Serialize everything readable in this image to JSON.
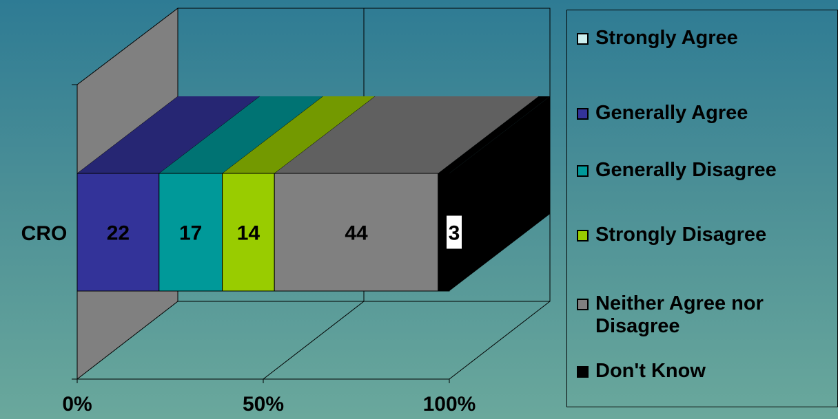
{
  "chart_data": {
    "type": "bar",
    "orientation": "horizontal",
    "stacked": "100%",
    "three_d": true,
    "categories": [
      "CRO"
    ],
    "series": [
      {
        "name": "Strongly Agree",
        "values": [
          0
        ],
        "color": "#cceeee",
        "top_color": "#cceeee",
        "side_color": "#cceeee",
        "label": ""
      },
      {
        "name": "Generally Agree",
        "values": [
          22
        ],
        "color": "#333399",
        "top_color": "#262673",
        "side_color": "#262673",
        "label": "22"
      },
      {
        "name": "Generally Disagree",
        "values": [
          17
        ],
        "color": "#009999",
        "top_color": "#007373",
        "side_color": "#007373",
        "label": "17"
      },
      {
        "name": "Strongly Disagree",
        "values": [
          14
        ],
        "color": "#99cc00",
        "top_color": "#739900",
        "side_color": "#739900",
        "label": "14"
      },
      {
        "name": "Neither Agree nor Disagree",
        "values": [
          44
        ],
        "color": "#808080",
        "top_color": "#606060",
        "side_color": "#606060",
        "label": "44"
      },
      {
        "name": "Don't Know",
        "values": [
          3
        ],
        "color": "#000000",
        "top_color": "#000000",
        "side_color": "#000000",
        "label": "3"
      }
    ],
    "x_ticks": [
      "0%",
      "50%",
      "100%"
    ],
    "xlim": [
      0,
      100
    ],
    "legend_position": "right",
    "grid": true
  },
  "legend": {
    "items": [
      {
        "label": "Strongly Agree",
        "color": "#cceeee"
      },
      {
        "label": "Generally Agree",
        "color": "#333399"
      },
      {
        "label": "Generally Disagree",
        "color": "#009999"
      },
      {
        "label": "Strongly Disagree",
        "color": "#99cc00"
      },
      {
        "label": "Neither Agree nor Disagree",
        "color": "#808080"
      },
      {
        "label": "Don't Know",
        "color": "#000000"
      }
    ]
  },
  "colors": {
    "wall": "#808080",
    "floor_line": "#000000",
    "axis_text": "#000000",
    "label_box": "#ffffff"
  }
}
